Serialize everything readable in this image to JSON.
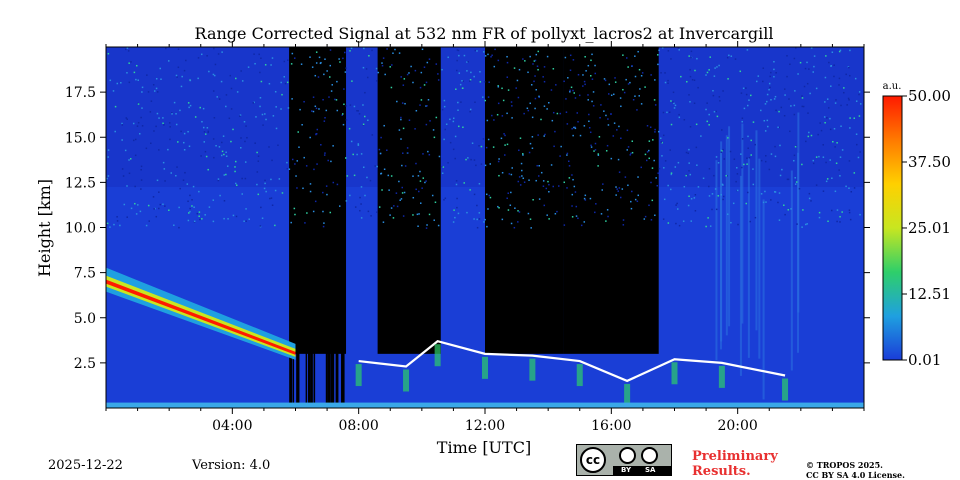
{
  "chart_data": {
    "type": "heatmap",
    "title": "Range Corrected Signal at 532 nm FR of pollyxt_lacros2 at Invercargill",
    "xlabel": "Time [UTC]",
    "ylabel": "Height [km]",
    "xlim": [
      0,
      24
    ],
    "ylim": [
      0,
      20
    ],
    "x_ticks": [
      4,
      8,
      12,
      16,
      20
    ],
    "x_tick_labels": [
      "04:00",
      "08:00",
      "12:00",
      "16:00",
      "20:00"
    ],
    "y_ticks": [
      2.5,
      5.0,
      7.5,
      10.0,
      12.5,
      15.0,
      17.5
    ],
    "y_tick_labels": [
      "2.5",
      "5.0",
      "7.5",
      "10.0",
      "12.5",
      "15.0",
      "17.5"
    ],
    "colorbar": {
      "unit": "a.u.",
      "range": [
        0.01,
        50.0
      ],
      "ticks": [
        0.01,
        12.51,
        25.01,
        37.5,
        50.0
      ],
      "tick_labels": [
        "0.01",
        "12.51",
        "25.01",
        "37.50",
        "50.00"
      ],
      "colors": [
        "#1a3cd8",
        "#1fa0e0",
        "#2ecf6a",
        "#c8e620",
        "#ffd000",
        "#ff7a00",
        "#ff1a00"
      ]
    },
    "features": {
      "descending_aerosol_layer": {
        "time": [
          0,
          6
        ],
        "height_km": [
          7.0,
          3.0
        ]
      },
      "cloud_base": [
        {
          "time": 8.0,
          "height_km": 2.6
        },
        {
          "time": 9.5,
          "height_km": 2.3
        },
        {
          "time": 10.5,
          "height_km": 3.7
        },
        {
          "time": 12.0,
          "height_km": 3.0
        },
        {
          "time": 13.5,
          "height_km": 2.9
        },
        {
          "time": 15.0,
          "height_km": 2.6
        },
        {
          "time": 16.5,
          "height_km": 1.5
        },
        {
          "time": 18.0,
          "height_km": 2.7
        },
        {
          "time": 19.5,
          "height_km": 2.5
        },
        {
          "time": 21.5,
          "height_km": 1.8
        }
      ],
      "no_data_or_occluded_periods": [
        [
          5.8,
          7.6
        ],
        [
          8.6,
          10.6
        ],
        [
          12.0,
          14.5
        ],
        [
          14.5,
          17.5
        ]
      ]
    }
  },
  "footer": {
    "date": "2025-12-22",
    "version": "Version: 4.0",
    "preliminary_line1": "Preliminary",
    "preliminary_line2": "Results.",
    "copyright_line1": "© TROPOS 2025.",
    "copyright_line2": "CC BY SA 4.0 License.",
    "badge_cc": "cc",
    "badge_by": "BY",
    "badge_sa": "SA"
  }
}
